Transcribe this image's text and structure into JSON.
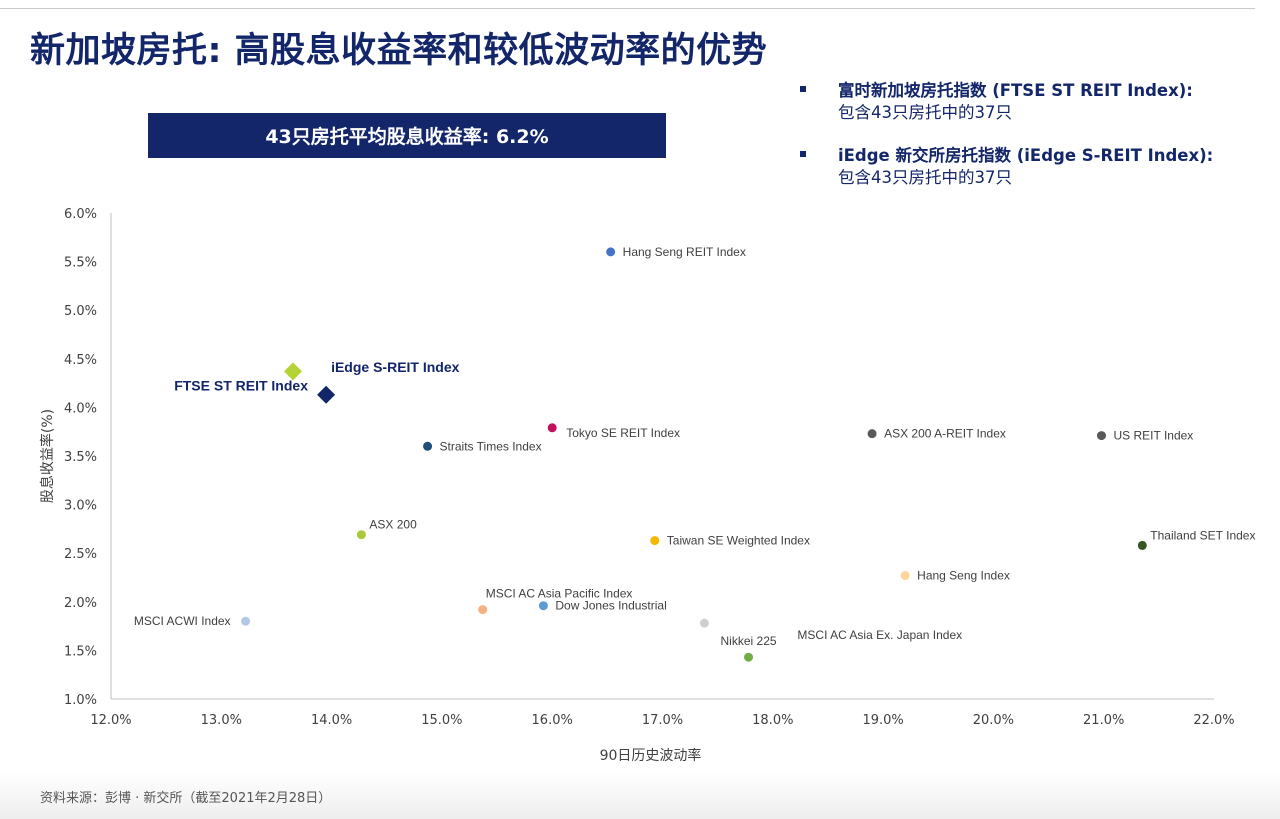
{
  "page": {
    "title": "新加坡房托: 高股息收益率和较低波动率的优势",
    "banner": "43只房托平均股息收益率: 6.2%",
    "bullets": [
      {
        "heading": "富时新加坡房托指数 (FTSE ST REIT Index):",
        "sub": "包含43只房托中的37只"
      },
      {
        "heading": "iEdge 新交所房托指数 (iEdge S-REIT Index):",
        "sub": "包含43只房托中的37只"
      }
    ],
    "source": "资料来源：彭博 · 新交所（截至2021年2月28日）"
  },
  "colors": {
    "navy": "#13266a",
    "lime": "#b5d334"
  },
  "chart_data": {
    "type": "scatter",
    "xlabel": "90日历史波动率",
    "ylabel": "股息收益率(%)",
    "xlim": [
      12.0,
      22.0
    ],
    "ylim": [
      1.0,
      6.0
    ],
    "xticks": [
      "12.0%",
      "13.0%",
      "14.0%",
      "15.0%",
      "16.0%",
      "17.0%",
      "18.0%",
      "19.0%",
      "20.0%",
      "21.0%",
      "22.0%"
    ],
    "yticks": [
      "1.0%",
      "1.5%",
      "2.0%",
      "2.5%",
      "3.0%",
      "3.5%",
      "4.0%",
      "4.5%",
      "5.0%",
      "5.5%",
      "6.0%"
    ],
    "points": [
      {
        "label": "Hang Seng REIT Index",
        "x": 16.53,
        "y": 5.6,
        "color": "#4472c4",
        "marker": "circle",
        "label_pos": "right"
      },
      {
        "label": "FTSE ST REIT Index",
        "x": 13.65,
        "y": 4.37,
        "color": "#b5d334",
        "marker": "diamond",
        "label_pos": "below-left",
        "bold": true
      },
      {
        "label": "iEdge S-REIT Index",
        "x": 13.95,
        "y": 4.13,
        "color": "#13266a",
        "marker": "diamond",
        "label_pos": "above-right",
        "bold": true
      },
      {
        "label": "Tokyo SE REIT Index",
        "x": 16.0,
        "y": 3.79,
        "color": "#c0135a",
        "marker": "circle",
        "label_pos": "right-below"
      },
      {
        "label": "Straits Times Index",
        "x": 14.87,
        "y": 3.6,
        "color": "#1f4e79",
        "marker": "circle",
        "label_pos": "right"
      },
      {
        "label": "ASX 200 A-REIT Index",
        "x": 18.9,
        "y": 3.73,
        "color": "#595959",
        "marker": "circle",
        "label_pos": "right"
      },
      {
        "label": "US REIT Index",
        "x": 20.98,
        "y": 3.71,
        "color": "#595959",
        "marker": "circle",
        "label_pos": "right"
      },
      {
        "label": "ASX 200",
        "x": 14.27,
        "y": 2.69,
        "color": "#a9c83a",
        "marker": "circle",
        "label_pos": "right-above"
      },
      {
        "label": "Taiwan SE Weighted Index",
        "x": 16.93,
        "y": 2.63,
        "color": "#f5b800",
        "marker": "circle",
        "label_pos": "right"
      },
      {
        "label": "Thailand SET Index",
        "x": 21.35,
        "y": 2.58,
        "color": "#375623",
        "marker": "circle",
        "label_pos": "right-above"
      },
      {
        "label": "Hang Seng Index",
        "x": 19.2,
        "y": 2.27,
        "color": "#ffd59a",
        "marker": "circle",
        "label_pos": "right"
      },
      {
        "label": "MSCI AC Asia Pacific Index",
        "x": 15.37,
        "y": 1.92,
        "color": "#f4b183",
        "marker": "circle",
        "label_pos": "right-above"
      },
      {
        "label": "Dow Jones Industrial",
        "x": 15.92,
        "y": 1.96,
        "color": "#5b9bd5",
        "marker": "circle",
        "label_pos": "right"
      },
      {
        "label": "MSCI ACWI Index",
        "x": 13.22,
        "y": 1.8,
        "color": "#b4c7e7",
        "marker": "circle",
        "label_pos": "left"
      },
      {
        "label": "MSCI AC Asia Ex. Japan Index",
        "x": 17.38,
        "y": 1.78,
        "color": "#d0d0d0",
        "marker": "circle",
        "label_pos": "right-below"
      },
      {
        "label": "Nikkei 225",
        "x": 17.78,
        "y": 1.43,
        "color": "#70ad47",
        "marker": "circle",
        "label_pos": "above"
      }
    ]
  }
}
